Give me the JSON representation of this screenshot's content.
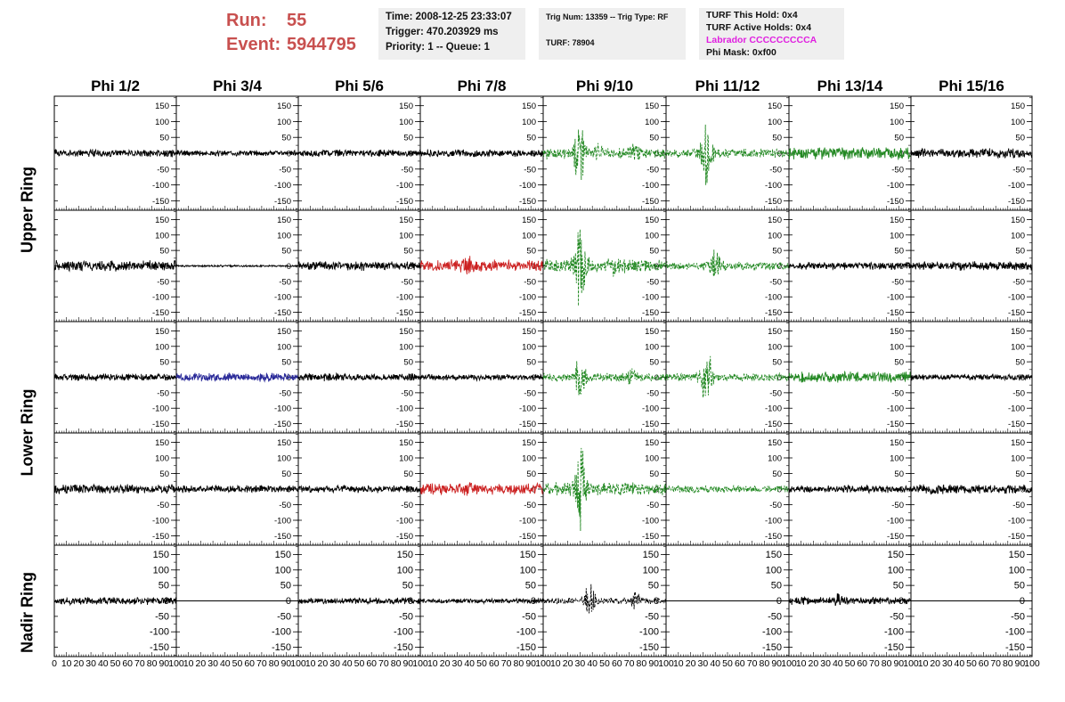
{
  "header": {
    "run_label": "Run:",
    "run_value": "55",
    "event_label": "Event:",
    "event_value": "5944795",
    "time": "Time: 2008-12-25 23:33:07",
    "trigger": "Trigger: 470.203929 ms",
    "priority": "Priority: 1 -- Queue: 1",
    "trig_num": "Trig Num: 13359 -- Trig Type: RF",
    "turf": "TURF: 78904",
    "turf_hold": "TURF This Hold: 0x4",
    "turf_active": "TURF Active Holds: 0x4",
    "labrador": "Labrador CCCCCCCCCA",
    "phi_mask": "Phi Mask: 0xf00"
  },
  "columns": [
    "Phi 1/2",
    "Phi 3/4",
    "Phi 5/6",
    "Phi 7/8",
    "Phi 9/10",
    "Phi 11/12",
    "Phi 13/14",
    "Phi 15/16"
  ],
  "ring_labels": [
    "Upper Ring",
    "Lower Ring",
    "Nadir Ring"
  ],
  "chart_data": {
    "type": "line",
    "ylim": [
      -180,
      180
    ],
    "xlim": [
      0,
      100
    ],
    "ytick_labels": [
      "150",
      "100",
      "50",
      "0",
      "-50",
      "-100",
      "-150"
    ],
    "xtick_labels": [
      "0",
      "10",
      "20",
      "30",
      "40",
      "50",
      "60",
      "70",
      "80",
      "90",
      "100"
    ],
    "colors": {
      "normal": "#000000",
      "red": "#cc2222",
      "green": "#228822",
      "blue": "#2a2a99"
    },
    "rows": [
      {
        "cells": [
          {
            "color": "normal",
            "amp": 12
          },
          {
            "color": "normal",
            "amp": 10
          },
          {
            "color": "normal",
            "amp": 12
          },
          {
            "color": "normal",
            "amp": 12
          },
          {
            "color": "green",
            "amp": 18,
            "dashed": true,
            "peaks": [
              {
                "x": 30,
                "a": 95
              },
              {
                "x": 45,
                "a": 20
              },
              {
                "x": 75,
                "a": 25
              }
            ]
          },
          {
            "color": "green",
            "amp": 14,
            "dashed": true,
            "peaks": [
              {
                "x": 33,
                "a": 110
              }
            ]
          },
          {
            "color": "green",
            "amp": 20
          },
          {
            "color": "normal",
            "amp": 15
          }
        ]
      },
      {
        "cells": [
          {
            "color": "normal",
            "amp": 18
          },
          {
            "color": "normal",
            "amp": 3
          },
          {
            "color": "normal",
            "amp": 15
          },
          {
            "color": "red",
            "amp": 20,
            "peaks": [
              {
                "x": 38,
                "a": 25
              }
            ]
          },
          {
            "color": "green",
            "amp": 22,
            "dashed": true,
            "peaks": [
              {
                "x": 30,
                "a": 160
              },
              {
                "x": 60,
                "a": 20
              }
            ]
          },
          {
            "color": "green",
            "amp": 14,
            "dashed": true,
            "peaks": [
              {
                "x": 40,
                "a": 50
              }
            ]
          },
          {
            "color": "normal",
            "amp": 12
          },
          {
            "color": "normal",
            "amp": 15
          }
        ]
      },
      {
        "cells": [
          {
            "color": "normal",
            "amp": 12
          },
          {
            "color": "blue",
            "amp": 14
          },
          {
            "color": "normal",
            "amp": 12
          },
          {
            "color": "normal",
            "amp": 10
          },
          {
            "color": "green",
            "amp": 14,
            "dashed": true,
            "peaks": [
              {
                "x": 30,
                "a": 60
              },
              {
                "x": 72,
                "a": 25
              }
            ]
          },
          {
            "color": "green",
            "amp": 14,
            "dashed": true,
            "peaks": [
              {
                "x": 33,
                "a": 110
              }
            ]
          },
          {
            "color": "green",
            "amp": 18
          },
          {
            "color": "normal",
            "amp": 10
          }
        ]
      },
      {
        "cells": [
          {
            "color": "normal",
            "amp": 15
          },
          {
            "color": "normal",
            "amp": 12
          },
          {
            "color": "normal",
            "amp": 12
          },
          {
            "color": "red",
            "amp": 18,
            "peaks": [
              {
                "x": 40,
                "a": 15
              }
            ]
          },
          {
            "color": "green",
            "amp": 22,
            "dashed": true,
            "peaks": [
              {
                "x": 30,
                "a": 150
              }
            ]
          },
          {
            "color": "green",
            "amp": 12,
            "dashed": true
          },
          {
            "color": "normal",
            "amp": 12
          },
          {
            "color": "normal",
            "amp": 15
          }
        ]
      },
      {
        "cells": [
          {
            "color": "normal",
            "amp": 12
          },
          {
            "color": "normal",
            "amp": 0
          },
          {
            "color": "normal",
            "amp": 10
          },
          {
            "color": "normal",
            "amp": 8
          },
          {
            "color": "normal",
            "amp": 10,
            "dashed": true,
            "peaks": [
              {
                "x": 38,
                "a": 55
              },
              {
                "x": 75,
                "a": 30
              }
            ]
          },
          {
            "color": "normal",
            "amp": 0
          },
          {
            "color": "normal",
            "amp": 12,
            "peaks": [
              {
                "x": 40,
                "a": 15
              }
            ]
          },
          {
            "color": "normal",
            "amp": 0
          }
        ]
      }
    ]
  }
}
